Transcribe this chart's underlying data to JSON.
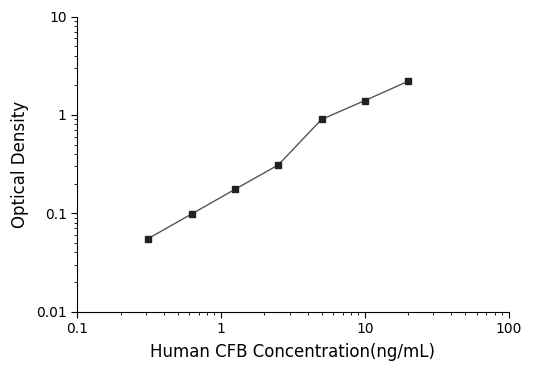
{
  "x": [
    0.31,
    0.63,
    1.25,
    2.5,
    5,
    10,
    20
  ],
  "y": [
    0.055,
    0.099,
    0.175,
    0.31,
    0.9,
    1.4,
    2.2
  ],
  "xlabel": "Human CFB Concentration(ng/mL)",
  "ylabel": "Optical Density",
  "xlim": [
    0.1,
    100
  ],
  "ylim": [
    0.01,
    10
  ],
  "xticks": [
    0.1,
    1,
    10,
    100
  ],
  "yticks": [
    0.01,
    0.1,
    1,
    10
  ],
  "xtick_labels": [
    "0.1",
    "1",
    "10",
    "100"
  ],
  "ytick_labels": [
    "0.01",
    "0.1",
    "1",
    "10"
  ],
  "line_color": "#555555",
  "marker_color": "#222222",
  "marker": "s",
  "marker_size": 5,
  "line_width": 1.0,
  "background_color": "#ffffff",
  "xlabel_fontsize": 12,
  "ylabel_fontsize": 12,
  "tick_fontsize": 10
}
